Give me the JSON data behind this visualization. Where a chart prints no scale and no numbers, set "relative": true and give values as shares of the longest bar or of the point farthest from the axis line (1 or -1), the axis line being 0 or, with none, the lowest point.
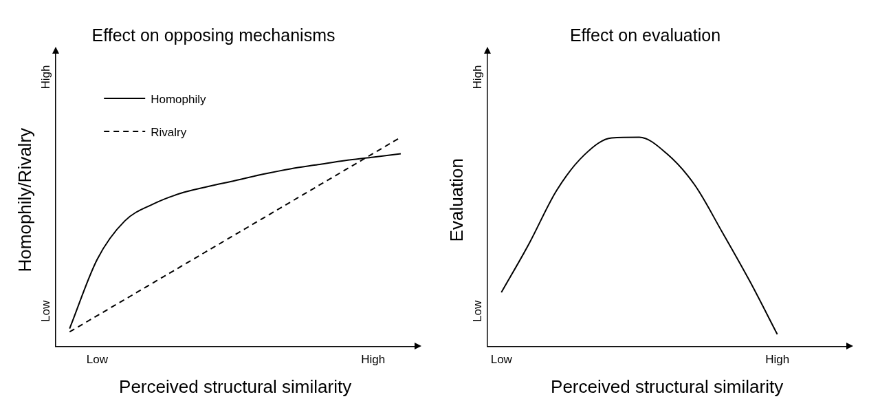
{
  "chart_data": [
    {
      "type": "line",
      "title": "Effect on opposing mechanisms",
      "xlabel": "Perceived structural similarity",
      "ylabel": "Homophily/Rivalry",
      "relative": true,
      "categories": [
        null,
        "Low",
        null,
        null,
        null,
        null,
        null,
        null,
        null,
        null,
        null,
        "High",
        null
      ],
      "annotations": [
        "Low",
        "High"
      ],
      "grid": false,
      "legend": "top left",
      "marker": "none",
      "series": [
        {
          "name": "Homophily",
          "color": "#000000",
          "line_style": "solid",
          "values": [
            0.085,
            0.416,
            0.6,
            0.679,
            0.731,
            0.764,
            0.793,
            0.823,
            0.849,
            0.869,
            0.889,
            0.905,
            0.921
          ]
        },
        {
          "name": "Rivalry",
          "color": "#000000",
          "line_style": "dashed",
          "values": [
            0.069,
            null,
            null,
            null,
            null,
            null,
            null,
            null,
            null,
            null,
            null,
            null,
            1
          ]
        }
      ]
    },
    {
      "type": "line",
      "title": "Effect on evaluation",
      "xlabel": "Perceived structural similarity",
      "ylabel": "Evaluation",
      "relative": true,
      "categories": [
        "Low",
        null,
        null,
        null,
        null,
        null,
        null,
        null,
        null,
        null,
        "High",
        null,
        null
      ],
      "annotations": [
        "Low",
        "High"
      ],
      "grid": false,
      "marker": "none",
      "series": [
        {
          "color": "#000000",
          "line_style": "solid",
          "values": [
            0.258,
            0.49,
            0.745,
            0.915,
            0.997,
            1,
            0.921,
            0.773,
            0.547,
            0.312,
            0.057,
            null,
            null
          ]
        }
      ]
    }
  ]
}
